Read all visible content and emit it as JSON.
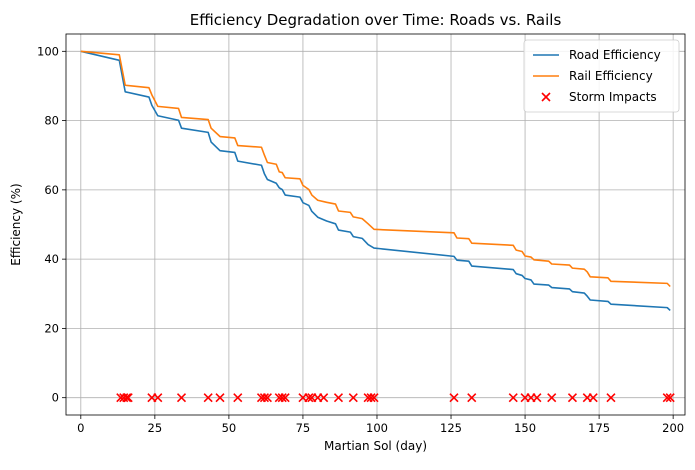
{
  "chart_data": {
    "type": "line",
    "title": "Efficiency Degradation over Time: Roads vs. Rails",
    "xlabel": "Martian Sol (day)",
    "ylabel": "Efficiency (%)",
    "xlim": [
      -5,
      204
    ],
    "ylim": [
      -5,
      105
    ],
    "xticks": [
      0,
      25,
      50,
      75,
      100,
      125,
      150,
      175,
      200
    ],
    "yticks": [
      0,
      20,
      40,
      60,
      80,
      100
    ],
    "grid": true,
    "legend_position": "top-right",
    "series": [
      {
        "name": "Road Efficiency",
        "kind": "line",
        "color": "#1f77b4",
        "points": [
          [
            0,
            100
          ],
          [
            13,
            97.4
          ],
          [
            15,
            88.3
          ],
          [
            23,
            86.8
          ],
          [
            24,
            84.4
          ],
          [
            26,
            81.4
          ],
          [
            33,
            80.1
          ],
          [
            34,
            77.8
          ],
          [
            43,
            76.6
          ],
          [
            44,
            73.8
          ],
          [
            47,
            71.3
          ],
          [
            52,
            70.8
          ],
          [
            53,
            68.3
          ],
          [
            61,
            67.1
          ],
          [
            62,
            64.6
          ],
          [
            63,
            63.0
          ],
          [
            66,
            61.9
          ],
          [
            67,
            60.6
          ],
          [
            68,
            60.1
          ],
          [
            69,
            58.5
          ],
          [
            74,
            57.9
          ],
          [
            75,
            56.3
          ],
          [
            77,
            55.5
          ],
          [
            78,
            53.8
          ],
          [
            80,
            52.1
          ],
          [
            83,
            51.0
          ],
          [
            86,
            50.2
          ],
          [
            87,
            48.4
          ],
          [
            91,
            47.8
          ],
          [
            92,
            46.5
          ],
          [
            95,
            46.0
          ],
          [
            97,
            44.2
          ],
          [
            99,
            43.2
          ],
          [
            126,
            40.8
          ],
          [
            127,
            39.7
          ],
          [
            131,
            39.4
          ],
          [
            132,
            38.0
          ],
          [
            146,
            37.0
          ],
          [
            147,
            35.8
          ],
          [
            149,
            35.3
          ],
          [
            150,
            34.4
          ],
          [
            152,
            34.0
          ],
          [
            153,
            32.8
          ],
          [
            158,
            32.5
          ],
          [
            159,
            31.8
          ],
          [
            165,
            31.4
          ],
          [
            166,
            30.6
          ],
          [
            170,
            30.2
          ],
          [
            171,
            29.3
          ],
          [
            172,
            28.2
          ],
          [
            178,
            27.8
          ],
          [
            179,
            27.0
          ],
          [
            198,
            26.0
          ],
          [
            199,
            25.2
          ]
        ]
      },
      {
        "name": "Rail Efficiency",
        "kind": "line",
        "color": "#ff7f0e",
        "points": [
          [
            0,
            100
          ],
          [
            13,
            99.0
          ],
          [
            15,
            90.2
          ],
          [
            23,
            89.5
          ],
          [
            24,
            87.4
          ],
          [
            26,
            84.1
          ],
          [
            33,
            83.5
          ],
          [
            34,
            80.9
          ],
          [
            43,
            80.3
          ],
          [
            44,
            77.8
          ],
          [
            47,
            75.4
          ],
          [
            52,
            75.0
          ],
          [
            53,
            72.8
          ],
          [
            61,
            72.3
          ],
          [
            62,
            70.0
          ],
          [
            63,
            67.9
          ],
          [
            66,
            67.4
          ],
          [
            67,
            65.2
          ],
          [
            68,
            65.0
          ],
          [
            69,
            63.5
          ],
          [
            74,
            63.2
          ],
          [
            75,
            61.3
          ],
          [
            77,
            60.1
          ],
          [
            78,
            58.5
          ],
          [
            80,
            57.0
          ],
          [
            83,
            56.4
          ],
          [
            86,
            55.9
          ],
          [
            87,
            53.9
          ],
          [
            91,
            53.5
          ],
          [
            92,
            52.2
          ],
          [
            95,
            51.7
          ],
          [
            97,
            50.2
          ],
          [
            99,
            48.6
          ],
          [
            126,
            47.6
          ],
          [
            127,
            46.1
          ],
          [
            131,
            45.9
          ],
          [
            132,
            44.6
          ],
          [
            146,
            44.0
          ],
          [
            147,
            42.6
          ],
          [
            149,
            42.2
          ],
          [
            150,
            40.9
          ],
          [
            152,
            40.6
          ],
          [
            153,
            39.8
          ],
          [
            158,
            39.4
          ],
          [
            159,
            38.6
          ],
          [
            165,
            38.3
          ],
          [
            166,
            37.4
          ],
          [
            170,
            37.1
          ],
          [
            171,
            36.3
          ],
          [
            172,
            34.9
          ],
          [
            178,
            34.6
          ],
          [
            179,
            33.6
          ],
          [
            198,
            33.0
          ],
          [
            199,
            32.1
          ]
        ]
      },
      {
        "name": "Storm Impacts",
        "kind": "scatter",
        "marker": "x",
        "color": "#ff0000",
        "points": [
          [
            13.5,
            0
          ],
          [
            14.5,
            0
          ],
          [
            15.5,
            0
          ],
          [
            16,
            0
          ],
          [
            24,
            0
          ],
          [
            26,
            0
          ],
          [
            34,
            0
          ],
          [
            43,
            0
          ],
          [
            47,
            0
          ],
          [
            53,
            0
          ],
          [
            61,
            0
          ],
          [
            62,
            0
          ],
          [
            63,
            0
          ],
          [
            67,
            0
          ],
          [
            68,
            0
          ],
          [
            69,
            0
          ],
          [
            75,
            0
          ],
          [
            77,
            0
          ],
          [
            78,
            0
          ],
          [
            80,
            0
          ],
          [
            82,
            0
          ],
          [
            87,
            0
          ],
          [
            92,
            0
          ],
          [
            97,
            0
          ],
          [
            98,
            0
          ],
          [
            99,
            0
          ],
          [
            126,
            0
          ],
          [
            132,
            0
          ],
          [
            146,
            0
          ],
          [
            150,
            0
          ],
          [
            152,
            0
          ],
          [
            154,
            0
          ],
          [
            159,
            0
          ],
          [
            166,
            0
          ],
          [
            171,
            0
          ],
          [
            173,
            0
          ],
          [
            179,
            0
          ],
          [
            198,
            0
          ],
          [
            199,
            0
          ]
        ]
      }
    ]
  }
}
